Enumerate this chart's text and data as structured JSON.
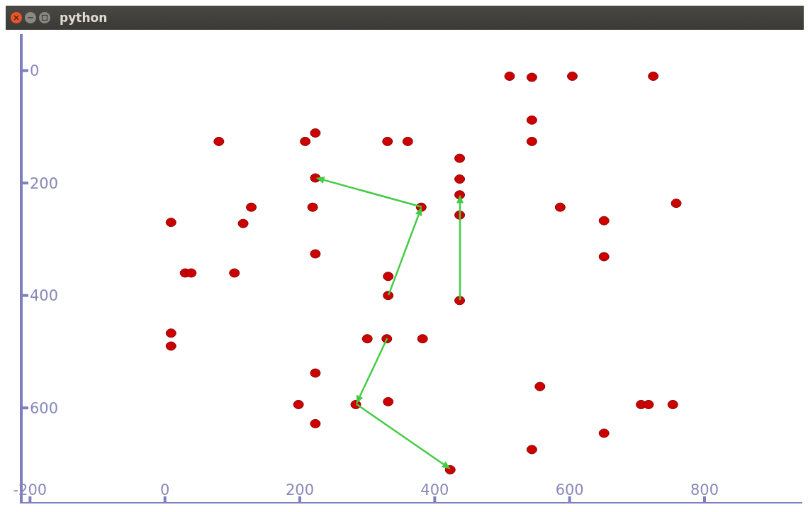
{
  "chart_data": {
    "type": "scatter",
    "title": "python",
    "xlim": [
      -213,
      945
    ],
    "ylim": [
      770,
      -65
    ],
    "xticks": [
      -200,
      0,
      200,
      400,
      600,
      800
    ],
    "yticks": [
      0,
      200,
      400,
      600
    ],
    "grid": false,
    "legend": false,
    "marker": "circle",
    "series": [
      {
        "color": "#cc0000",
        "x": [
          511,
          544,
          604,
          724,
          544,
          544,
          80,
          208,
          223,
          330,
          360,
          437,
          223,
          437,
          437,
          437,
          380,
          128,
          219,
          586,
          758,
          9,
          116,
          651,
          223,
          651,
          30,
          39,
          103,
          331,
          331,
          437,
          9,
          9,
          300,
          329,
          382,
          223,
          198,
          283,
          331,
          223,
          556,
          706,
          717,
          753,
          651,
          544,
          423
        ],
        "values": [
          10,
          12,
          10,
          10,
          88,
          126,
          126,
          126,
          111,
          126,
          126,
          156,
          191,
          193,
          221,
          257,
          243,
          243,
          243,
          243,
          236,
          270,
          272,
          267,
          326,
          331,
          360,
          360,
          360,
          366,
          400,
          409,
          467,
          490,
          477,
          477,
          477,
          538,
          594,
          594,
          589,
          628,
          562,
          594,
          594,
          594,
          645,
          674,
          710
        ]
      }
    ]
  }
}
